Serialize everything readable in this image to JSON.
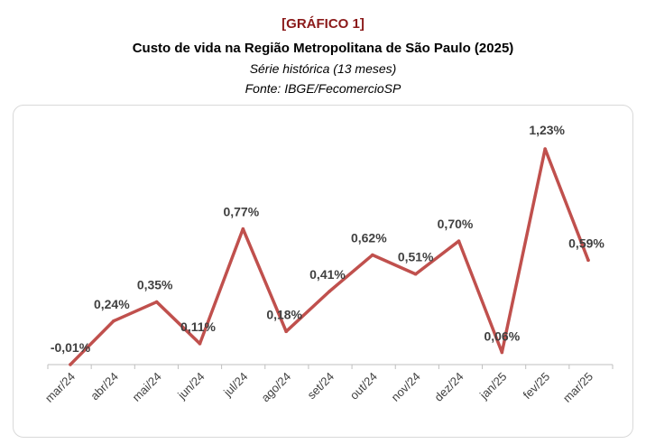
{
  "header": {
    "tag": "[GRÁFICO 1]",
    "title": "Custo de vida na Região Metropolitana de São Paulo (2025)",
    "subtitle": "Série histórica (13 meses)",
    "source": "Fonte: IBGE/FecomercioSP"
  },
  "chart_data": {
    "type": "line",
    "title": "Custo de vida na Região Metropolitana de São Paulo (2025)",
    "categories": [
      "mar/24",
      "abr/24",
      "mai/24",
      "jun/24",
      "jul/24",
      "ago/24",
      "set/24",
      "out/24",
      "nov/24",
      "dez/24",
      "jan/25",
      "fev/25",
      "mar/25"
    ],
    "series": [
      {
        "values": [
          -0.01,
          0.24,
          0.35,
          0.11,
          0.77,
          0.18,
          0.41,
          0.62,
          0.51,
          0.7,
          0.06,
          1.23,
          0.59
        ],
        "labels": [
          "-0,01%",
          "0,24%",
          "0,35%",
          "0,11%",
          "0,77%",
          "0,18%",
          "0,41%",
          "0,62%",
          "0,51%",
          "0,70%",
          "0,06%",
          "1,23%",
          "0,59%"
        ]
      }
    ],
    "ylim": [
      0,
      1.23
    ],
    "grid": false,
    "colors": {
      "line": "#c0504d",
      "labels": "#404040",
      "axis": "#bfbfbf",
      "tag": "#8b1a1a"
    }
  }
}
